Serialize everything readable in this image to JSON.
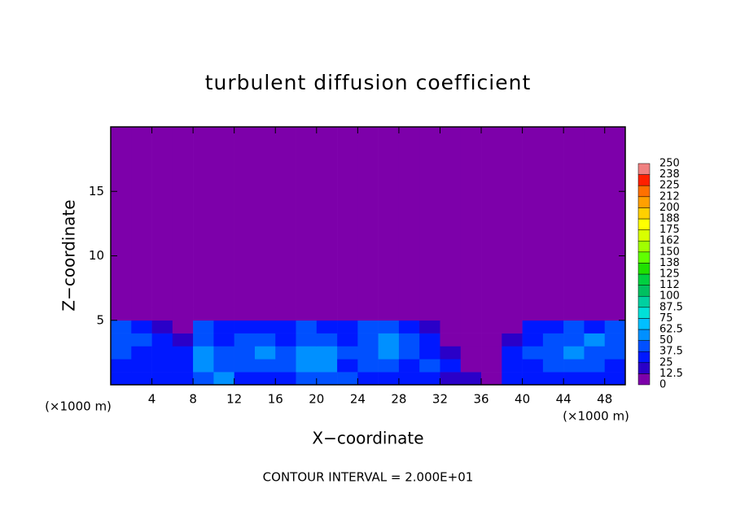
{
  "chart_data": {
    "type": "heatmap",
    "title": "turbulent diffusion coefficient",
    "xlabel": "X−coordinate",
    "ylabel": "Z−coordinate",
    "x_unit": "(×1000 m)",
    "y_unit": "(×1000 m)",
    "annotation": "CONTOUR INTERVAL = 2.000E+01",
    "xlim": [
      0,
      50
    ],
    "ylim": [
      0,
      20
    ],
    "xticks": [
      4,
      8,
      12,
      16,
      20,
      24,
      28,
      32,
      36,
      40,
      44,
      48
    ],
    "yticks": [
      5,
      10,
      15
    ],
    "x_edges": [
      0,
      2,
      4,
      6,
      8,
      10,
      12,
      14,
      16,
      18,
      20,
      22,
      24,
      26,
      28,
      30,
      32,
      34,
      36,
      38,
      40,
      42,
      44,
      46,
      48,
      50
    ],
    "z_edges": [
      0,
      1,
      2,
      3,
      4,
      5,
      6,
      20
    ],
    "values": [
      [
        30,
        35,
        30,
        25,
        40,
        60,
        35,
        30,
        35,
        40,
        45,
        40,
        30,
        35,
        30,
        35,
        20,
        15,
        10,
        25,
        30,
        35,
        30,
        35,
        30
      ],
      [
        35,
        30,
        25,
        30,
        55,
        45,
        40,
        45,
        40,
        55,
        50,
        35,
        40,
        45,
        35,
        40,
        25,
        5,
        5,
        30,
        35,
        40,
        45,
        40,
        35
      ],
      [
        40,
        35,
        30,
        25,
        50,
        40,
        45,
        50,
        40,
        50,
        55,
        40,
        45,
        50,
        40,
        35,
        20,
        5,
        5,
        30,
        40,
        45,
        50,
        45,
        40
      ],
      [
        45,
        40,
        30,
        20,
        45,
        35,
        40,
        40,
        35,
        45,
        40,
        35,
        45,
        50,
        45,
        30,
        10,
        5,
        5,
        20,
        35,
        40,
        45,
        50,
        40
      ],
      [
        40,
        35,
        15,
        10,
        40,
        30,
        35,
        35,
        30,
        40,
        35,
        30,
        40,
        45,
        35,
        20,
        5,
        0,
        0,
        10,
        30,
        35,
        40,
        35,
        40
      ],
      [
        5,
        5,
        0,
        0,
        5,
        0,
        5,
        5,
        0,
        5,
        5,
        0,
        5,
        5,
        0,
        0,
        0,
        0,
        0,
        0,
        5,
        5,
        5,
        5,
        5
      ],
      [
        0,
        0,
        0,
        0,
        0,
        0,
        0,
        0,
        0,
        0,
        0,
        0,
        0,
        0,
        0,
        0,
        0,
        0,
        0,
        0,
        0,
        0,
        0,
        0,
        0
      ]
    ],
    "colorbar": {
      "levels": [
        0,
        12.5,
        25,
        37.5,
        50,
        62.5,
        75,
        87.5,
        100,
        {
          "value": 112.5,
          "label": "112"
        },
        125,
        {
          "value": 137.5,
          "label": "138"
        },
        150,
        {
          "value": 162.5,
          "label": "162"
        },
        175,
        {
          "value": 187.5,
          "label": "188"
        },
        200,
        {
          "value": 212.5,
          "label": "212"
        },
        225,
        {
          "value": 237.5,
          "label": "238"
        },
        250
      ],
      "colors": [
        "#7d00aa",
        "#2a00c8",
        "#0018ff",
        "#0050ff",
        "#0090ff",
        "#00c0ff",
        "#00e0d8",
        "#00d0a0",
        "#00c060",
        "#00d040",
        "#20e000",
        "#60ff00",
        "#a0ff00",
        "#d8ff00",
        "#ffff00",
        "#ffd000",
        "#ffa000",
        "#ff7000",
        "#ff2000",
        "#f08080"
      ]
    }
  }
}
